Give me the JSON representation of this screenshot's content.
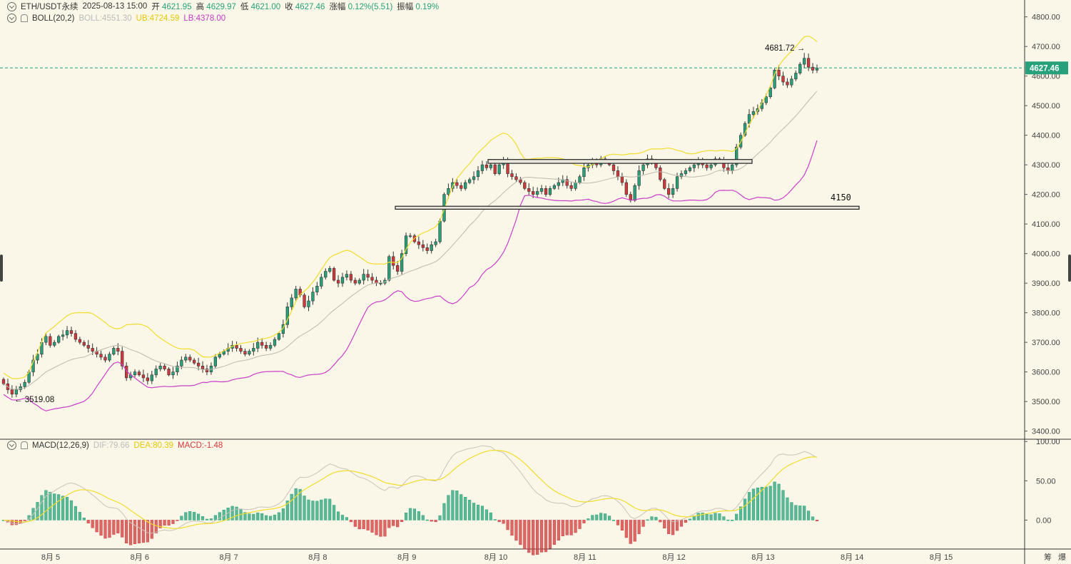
{
  "header": {
    "symbol": "ETH/USDT永续",
    "datetime": "2025-08-13 15:00",
    "open_label": "开",
    "open": "4621.95",
    "high_label": "高",
    "high": "4629.97",
    "low_label": "低",
    "low": "4621.00",
    "close_label": "收",
    "close": "4627.46",
    "change_label": "涨幅",
    "change": "0.12%(5.51)",
    "amp_label": "振幅",
    "amp": "0.19%"
  },
  "boll": {
    "label": "BOLL(20,2)",
    "boll": "BOLL:4551.30",
    "ub": "UB:4724.59",
    "lb": "LB:4378.00"
  },
  "macd": {
    "label": "MACD(12,26,9)",
    "dif": "DIF:79.66",
    "dea": "DEA:80.39",
    "macd": "MACD:-1.48"
  },
  "bottom_right": [
    "筹",
    "爆"
  ],
  "chart_data": {
    "type": "candlestick",
    "price_axis": {
      "ticks": [
        "4800.00",
        "4700.00",
        "4600.00",
        "4500.00",
        "4400.00",
        "4300.00",
        "4200.00",
        "4100.00",
        "4000.00",
        "3900.00",
        "3800.00",
        "3700.00",
        "3600.00",
        "3500.00",
        "3400.00"
      ],
      "range": [
        3375,
        4845
      ]
    },
    "macd_axis": {
      "ticks": [
        "100.00",
        "50.00",
        "0.00"
      ],
      "range": [
        -35,
        102
      ]
    },
    "x_ticks": [
      "8月 5",
      "8月 6",
      "8月 7",
      "8月 8",
      "8月 9",
      "8月 10",
      "8月 11",
      "8月 12",
      "8月 13",
      "8月 14",
      "8月 15"
    ],
    "current_price": "4627.46",
    "annotations": {
      "high": "4681.72",
      "low": "3519.08",
      "support": "4150"
    },
    "close_series": [
      3560,
      3540,
      3525,
      3540,
      3550,
      3565,
      3600,
      3640,
      3660,
      3700,
      3720,
      3690,
      3700,
      3720,
      3725,
      3740,
      3730,
      3710,
      3700,
      3690,
      3680,
      3670,
      3660,
      3650,
      3640,
      3660,
      3680,
      3670,
      3620,
      3580,
      3590,
      3600,
      3590,
      3580,
      3570,
      3590,
      3610,
      3620,
      3610,
      3590,
      3600,
      3620,
      3640,
      3650,
      3640,
      3630,
      3620,
      3610,
      3600,
      3620,
      3650,
      3660,
      3670,
      3680,
      3690,
      3680,
      3670,
      3660,
      3670,
      3680,
      3700,
      3690,
      3680,
      3690,
      3710,
      3730,
      3760,
      3820,
      3850,
      3880,
      3860,
      3820,
      3840,
      3870,
      3890,
      3920,
      3940,
      3950,
      3910,
      3900,
      3920,
      3930,
      3910,
      3900,
      3910,
      3930,
      3920,
      3910,
      3900,
      3900,
      3910,
      3990,
      3960,
      3940,
      4000,
      4060,
      4060,
      4040,
      4030,
      4020,
      4010,
      4030,
      4040,
      4110,
      4200,
      4220,
      4240,
      4230,
      4220,
      4240,
      4250,
      4260,
      4280,
      4300,
      4290,
      4300,
      4270,
      4300,
      4310,
      4270,
      4260,
      4250,
      4240,
      4220,
      4210,
      4200,
      4210,
      4220,
      4200,
      4220,
      4230,
      4240,
      4250,
      4230,
      4220,
      4240,
      4260,
      4290,
      4300,
      4310,
      4300,
      4320,
      4310,
      4300,
      4280,
      4260,
      4240,
      4200,
      4180,
      4230,
      4280,
      4300,
      4320,
      4310,
      4290,
      4250,
      4220,
      4200,
      4220,
      4260,
      4270,
      4280,
      4290,
      4300,
      4310,
      4300,
      4290,
      4300,
      4320,
      4310,
      4290,
      4280,
      4300,
      4360,
      4400,
      4440,
      4470,
      4480,
      4490,
      4510,
      4530,
      4560,
      4620,
      4600,
      4580,
      4570,
      4590,
      4610,
      4640,
      4660,
      4630,
      4620,
      4627
    ],
    "bollinger": {
      "upper_last": 4724.59,
      "mid_last": 4551.3,
      "lower_last": 4378.0
    },
    "macd_last": {
      "dif": 79.66,
      "dea": 80.39,
      "hist": -1.48
    }
  },
  "style": {
    "bg": "#fbf7e8",
    "up": "#26a17b",
    "down": "#d2383b",
    "ub": "#f3dd2a",
    "mid": "#bdb8ad",
    "lb": "#c83ec8",
    "price_tag": "#26a17b"
  }
}
